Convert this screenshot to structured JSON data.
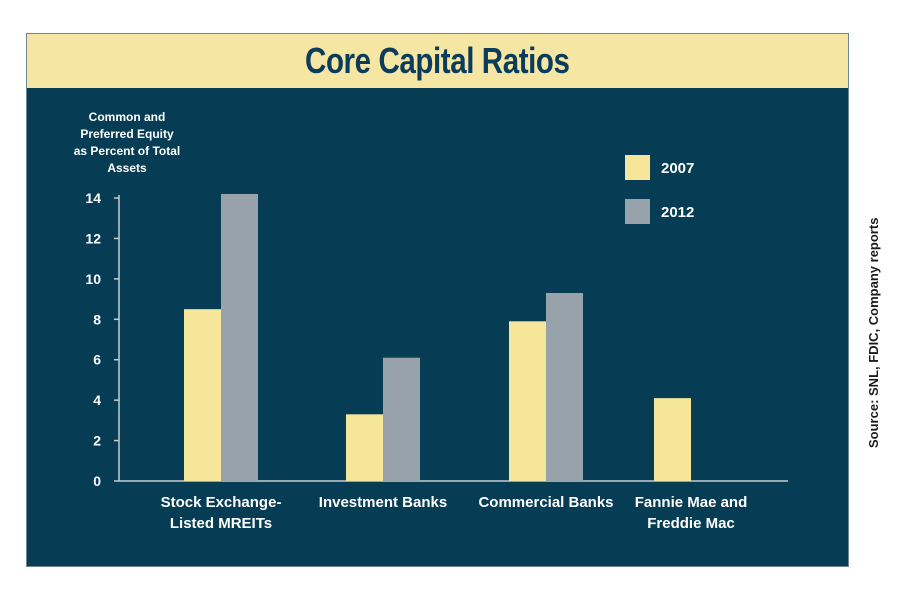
{
  "title": "Core Capital Ratios",
  "source": "Source: SNL, FDIC, Company reports",
  "colors": {
    "background": "#063d55",
    "title_band": "#f5e6a3",
    "title_text": "#0b3c5b",
    "series_2007": "#f5e69a",
    "series_2012": "#98a2ab",
    "axis": "#c5cdd2",
    "label_text": "#ffffff"
  },
  "chart_data": {
    "type": "bar",
    "title": "Core Capital Ratios",
    "ylabel": [
      "Common and",
      "Preferred Equity",
      "as Percent of Total",
      "Assets"
    ],
    "xlabel": "",
    "ylim": [
      0,
      14
    ],
    "yticks": [
      "0",
      "2",
      "4",
      "6",
      "8",
      "10",
      "12",
      "14"
    ],
    "grid": false,
    "legend_position": "top-right",
    "categories": [
      [
        "Stock Exchange-",
        "Listed MREITs"
      ],
      [
        "Investment Banks"
      ],
      [
        "Commercial Banks"
      ],
      [
        "Fannie Mae and",
        "Freddie Mac"
      ]
    ],
    "series": [
      {
        "name": "2007",
        "values": [
          8.5,
          3.3,
          7.9,
          4.1
        ]
      },
      {
        "name": "2012",
        "values": [
          14.2,
          6.1,
          9.3,
          null
        ]
      }
    ]
  }
}
